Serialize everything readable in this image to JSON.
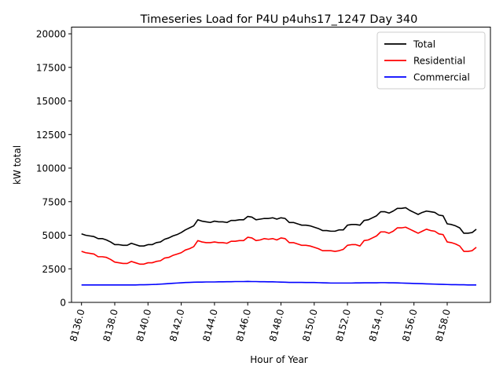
{
  "chart_data": {
    "type": "line",
    "title": "Timeseries Load for P4U p4uhs17_1247  Day 340",
    "xlabel": "Hour of Year",
    "ylabel": "kW total",
    "xlim": [
      8135.4,
      8160.6
    ],
    "ylim": [
      0,
      20500
    ],
    "yticks": [
      0,
      2500,
      5000,
      7500,
      10000,
      12500,
      15000,
      17500,
      20000
    ],
    "ytick_labels": [
      "0",
      "2500",
      "5000",
      "7500",
      "10000",
      "12500",
      "15000",
      "17500",
      "20000"
    ],
    "xticks": [
      8136,
      8138,
      8140,
      8142,
      8144,
      8146,
      8148,
      8150,
      8152,
      8154,
      8156,
      8158
    ],
    "xtick_labels": [
      "8136.0",
      "8138.0",
      "8140.0",
      "8142.0",
      "8144.0",
      "8146.0",
      "8148.0",
      "8150.0",
      "8152.0",
      "8154.0",
      "8156.0",
      "8158.0"
    ],
    "grid": false,
    "legend_position": "top-right",
    "x_start": 8136,
    "x_step": 0.25,
    "series": [
      {
        "name": "Total",
        "color": "#000000",
        "values": [
          5100,
          5000,
          4950,
          4900,
          4750,
          4750,
          4650,
          4500,
          4300,
          4300,
          4250,
          4250,
          4400,
          4300,
          4200,
          4200,
          4300,
          4300,
          4450,
          4500,
          4700,
          4800,
          4950,
          5050,
          5200,
          5400,
          5550,
          5700,
          6150,
          6050,
          6000,
          5950,
          6050,
          6000,
          6000,
          5950,
          6100,
          6100,
          6150,
          6150,
          6400,
          6350,
          6150,
          6200,
          6250,
          6250,
          6300,
          6200,
          6300,
          6250,
          5950,
          5950,
          5850,
          5750,
          5750,
          5700,
          5600,
          5500,
          5350,
          5350,
          5300,
          5300,
          5400,
          5400,
          5750,
          5800,
          5800,
          5750,
          6100,
          6150,
          6300,
          6450,
          6750,
          6750,
          6650,
          6800,
          7000,
          7000,
          7050,
          6850,
          6700,
          6550,
          6700,
          6800,
          6750,
          6700,
          6500,
          6450,
          5850,
          5800,
          5700,
          5550,
          5150,
          5150,
          5200,
          5450
        ]
      },
      {
        "name": "Residential",
        "color": "#ff0000",
        "values": [
          3800,
          3700,
          3650,
          3600,
          3400,
          3400,
          3350,
          3200,
          3000,
          2950,
          2900,
          2900,
          3050,
          2950,
          2850,
          2850,
          2950,
          2950,
          3050,
          3100,
          3300,
          3350,
          3500,
          3600,
          3700,
          3900,
          4000,
          4150,
          4600,
          4500,
          4450,
          4450,
          4500,
          4450,
          4450,
          4400,
          4550,
          4550,
          4600,
          4600,
          4850,
          4800,
          4600,
          4650,
          4750,
          4700,
          4750,
          4650,
          4800,
          4750,
          4450,
          4450,
          4350,
          4250,
          4250,
          4200,
          4100,
          4000,
          3850,
          3850,
          3850,
          3800,
          3850,
          3950,
          4250,
          4300,
          4300,
          4200,
          4600,
          4650,
          4800,
          4950,
          5250,
          5250,
          5150,
          5300,
          5550,
          5550,
          5600,
          5450,
          5300,
          5150,
          5300,
          5450,
          5350,
          5300,
          5100,
          5050,
          4500,
          4450,
          4350,
          4200,
          3800,
          3800,
          3850,
          4100
        ]
      },
      {
        "name": "Commercial",
        "color": "#0000ff",
        "values": [
          1300,
          1300,
          1300,
          1300,
          1300,
          1300,
          1300,
          1300,
          1300,
          1300,
          1300,
          1300,
          1300,
          1300,
          1310,
          1310,
          1320,
          1330,
          1340,
          1360,
          1380,
          1400,
          1420,
          1440,
          1460,
          1480,
          1490,
          1500,
          1510,
          1510,
          1520,
          1520,
          1520,
          1530,
          1530,
          1540,
          1540,
          1550,
          1550,
          1550,
          1560,
          1550,
          1550,
          1540,
          1540,
          1530,
          1530,
          1520,
          1510,
          1500,
          1490,
          1490,
          1490,
          1490,
          1480,
          1480,
          1480,
          1470,
          1460,
          1450,
          1440,
          1440,
          1440,
          1440,
          1440,
          1440,
          1450,
          1450,
          1460,
          1460,
          1460,
          1460,
          1470,
          1470,
          1460,
          1460,
          1450,
          1440,
          1430,
          1420,
          1410,
          1400,
          1390,
          1380,
          1370,
          1360,
          1350,
          1340,
          1330,
          1320,
          1320,
          1310,
          1310,
          1300,
          1300,
          1300
        ]
      }
    ]
  }
}
